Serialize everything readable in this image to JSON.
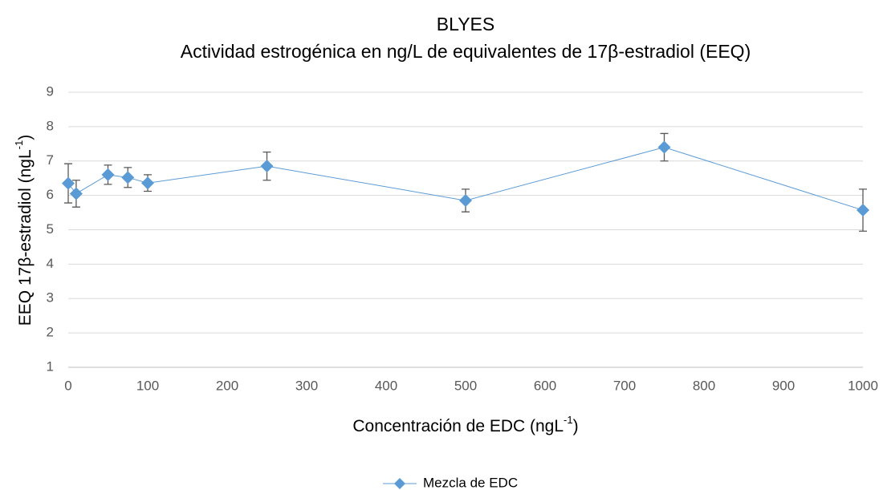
{
  "chart_data": {
    "type": "line",
    "title": [
      "BLYES",
      "Actividad estrogénica en ng/L de equivalentes de 17β-estradiol (EEQ)"
    ],
    "xlabel": {
      "text": "Concentración de EDC (ngL",
      "superscript": "-1",
      "suffix": ")"
    },
    "ylabel": {
      "text": "EEQ 17β-estradiol (ngL",
      "superscript": "-1",
      "suffix": ")"
    },
    "x": [
      0,
      10,
      50,
      75,
      100,
      250,
      500,
      750,
      1000
    ],
    "series": [
      {
        "name": "Mezcla de EDC",
        "color": "#5b9bd5",
        "values": [
          6.35,
          6.05,
          6.6,
          6.52,
          6.36,
          6.85,
          5.85,
          7.4,
          5.57
        ],
        "errors": [
          0.57,
          0.39,
          0.28,
          0.29,
          0.24,
          0.41,
          0.33,
          0.4,
          0.61
        ]
      }
    ],
    "xlim": [
      0,
      1000
    ],
    "xticks": [
      0,
      100,
      200,
      300,
      400,
      500,
      600,
      700,
      800,
      900,
      1000
    ],
    "ylim": [
      1,
      9
    ],
    "yticks": [
      1,
      2,
      3,
      4,
      5,
      6,
      7,
      8,
      9
    ],
    "grid": true,
    "legend": "bottom"
  }
}
